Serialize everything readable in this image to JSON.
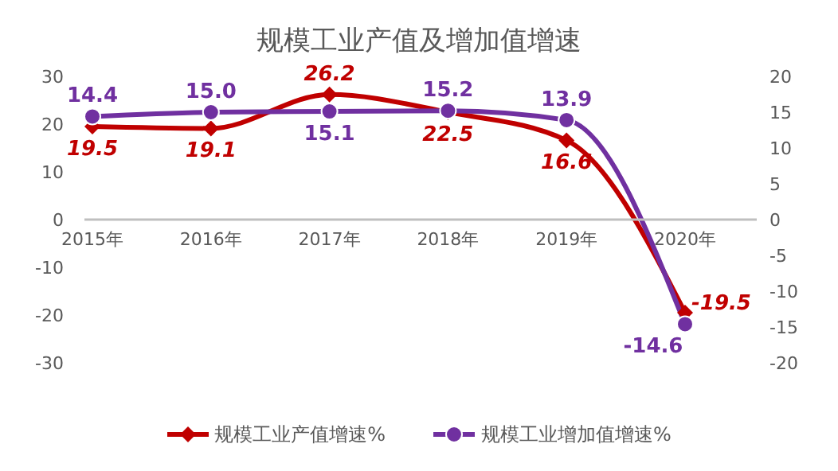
{
  "chart_data": {
    "type": "line",
    "title": "规模工业产值及增加值增速",
    "categories": [
      "2015年",
      "2016年",
      "2017年",
      "2018年",
      "2019年",
      "2020年"
    ],
    "series": [
      {
        "name": "规模工业产值增速%",
        "color": "#c00000",
        "values": [
          19.5,
          19.1,
          26.2,
          22.5,
          16.6,
          -19.5
        ],
        "value_labels": [
          "19.5",
          "19.1",
          "26.2",
          "22.5",
          "16.6",
          "-19.5"
        ],
        "marker": "diamond"
      },
      {
        "name": "规模工业增加值增速%",
        "color": "#7030a0",
        "values": [
          14.4,
          15.0,
          15.1,
          15.2,
          13.9,
          -14.6
        ],
        "value_labels": [
          "14.4",
          "15.0",
          "15.1",
          "15.2",
          "13.9",
          "-14.6"
        ],
        "axis": "y2",
        "marker": "circle"
      }
    ],
    "ylim": [
      -30,
      30
    ],
    "yticks": [
      -30,
      -20,
      -10,
      0,
      10,
      20,
      30
    ],
    "y2lim": [
      -20,
      20
    ],
    "y2ticks": [
      -20,
      -15,
      -10,
      -5,
      0,
      5,
      10,
      15,
      20
    ],
    "legend": "bottom",
    "line_style": "solid"
  }
}
